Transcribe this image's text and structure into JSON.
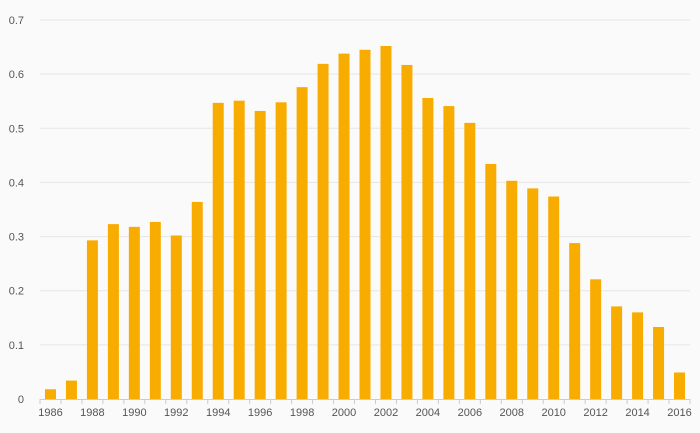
{
  "chart_data": {
    "type": "bar",
    "title": "",
    "xlabel": "",
    "ylabel": "",
    "ylim": [
      0,
      0.7
    ],
    "yticks": [
      "0",
      "0.1",
      "0.2",
      "0.3",
      "0.4",
      "0.5",
      "0.6",
      "0.7"
    ],
    "grid": true,
    "bar_color": "#f9ac00",
    "categories": [
      "1986",
      "1987",
      "1988",
      "1989",
      "1990",
      "1991",
      "1992",
      "1993",
      "1994",
      "1995",
      "1996",
      "1997",
      "1998",
      "1999",
      "2000",
      "2001",
      "2002",
      "2003",
      "2004",
      "2005",
      "2006",
      "2007",
      "2008",
      "2009",
      "2010",
      "2011",
      "2012",
      "2013",
      "2014",
      "2015",
      "2016"
    ],
    "xtick_labels": [
      "1986",
      "1988",
      "1990",
      "1992",
      "1994",
      "1996",
      "1998",
      "2000",
      "2002",
      "2004",
      "2006",
      "2008",
      "2010",
      "2012",
      "2014",
      "2016"
    ],
    "values": [
      0.018,
      0.034,
      0.293,
      0.323,
      0.318,
      0.327,
      0.302,
      0.364,
      0.547,
      0.551,
      0.532,
      0.548,
      0.576,
      0.619,
      0.638,
      0.645,
      0.652,
      0.617,
      0.556,
      0.541,
      0.51,
      0.434,
      0.403,
      0.389,
      0.374,
      0.288,
      0.221,
      0.171,
      0.16,
      0.133,
      0.049
    ]
  }
}
